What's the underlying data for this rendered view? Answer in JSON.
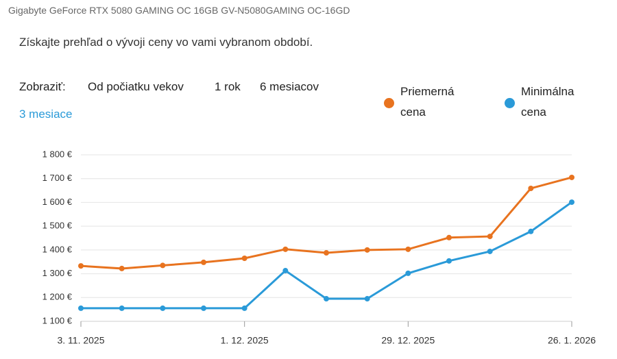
{
  "header": {
    "product": "Gigabyte GeForce RTX 5080 GAMING OC 16GB GV-N5080GAMING OC-16GD",
    "description": "Získajte prehľad o vývoji ceny vo vami vybranom období."
  },
  "filters": {
    "label": "Zobraziť:",
    "options": [
      "Od počiatku vekov",
      "1 rok",
      "6 mesiacov",
      "3 mesiace"
    ],
    "selected": 3
  },
  "chart_data": {
    "type": "line",
    "x": [
      "2025-11-03",
      "2025-11-10",
      "2025-11-17",
      "2025-11-24",
      "2025-12-01",
      "2025-12-08",
      "2025-12-15",
      "2025-12-22",
      "2025-12-29",
      "2026-01-05",
      "2026-01-12",
      "2026-01-19",
      "2026-01-26"
    ],
    "series": [
      {
        "name": "Priemerná cena",
        "color": "#e8731f",
        "values": [
          1333,
          1322,
          1335,
          1348,
          1365,
          1403,
          1388,
          1400,
          1403,
          1452,
          1457,
          1659,
          1705
        ]
      },
      {
        "name": "Minimálna cena",
        "color": "#2a9ad8",
        "values": [
          1155,
          1155,
          1155,
          1155,
          1155,
          1313,
          1195,
          1195,
          1302,
          1354,
          1394,
          1478,
          1601
        ]
      }
    ],
    "xlim": [
      "2025-11-03",
      "2026-01-26"
    ],
    "xticks": [
      {
        "value": "2025-11-03",
        "label": "3. 11. 2025"
      },
      {
        "value": "2025-12-01",
        "label": "1. 12. 2025"
      },
      {
        "value": "2025-12-29",
        "label": "29. 12. 2025"
      },
      {
        "value": "2026-01-26",
        "label": "26. 1. 2026"
      }
    ],
    "ylim": [
      1100,
      1800
    ],
    "yticks": [
      {
        "value": 1100,
        "label": "1 100 €"
      },
      {
        "value": 1200,
        "label": "1 200 €"
      },
      {
        "value": 1300,
        "label": "1 300 €"
      },
      {
        "value": 1400,
        "label": "1 400 €"
      },
      {
        "value": 1500,
        "label": "1 500 €"
      },
      {
        "value": 1600,
        "label": "1 600 €"
      },
      {
        "value": 1700,
        "label": "1 700 €"
      },
      {
        "value": 1800,
        "label": "1 800 €"
      }
    ],
    "grid": true,
    "legend": "top-right"
  }
}
